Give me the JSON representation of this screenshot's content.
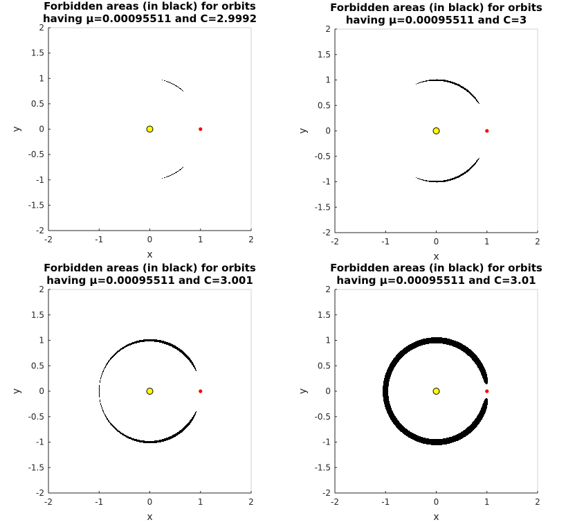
{
  "chart_data": [
    {
      "type": "scatter",
      "title": [
        "Forbidden areas (in black) for orbits",
        "having μ=0.00095511 and C=2.9992"
      ],
      "xlabel": "x",
      "ylabel": "y",
      "xlim": [
        -2,
        2
      ],
      "ylim": [
        -2,
        2
      ],
      "xticks": [
        -2,
        -1,
        0,
        1,
        2
      ],
      "yticks": [
        -2,
        -1.5,
        -1,
        -0.5,
        0,
        0.5,
        1,
        1.5,
        2
      ],
      "mu": 0.00095511,
      "C": 2.9992,
      "primary": {
        "x": 0,
        "y": 0,
        "color": "#ffff00"
      },
      "secondary": {
        "x": 1,
        "y": 0,
        "color": "#ff0000"
      },
      "forbidden_color": "#000000",
      "grid": false
    },
    {
      "type": "scatter",
      "title": [
        "Forbidden areas (in black) for orbits",
        "having μ=0.00095511 and C=3"
      ],
      "xlabel": "x",
      "ylabel": "y",
      "xlim": [
        -2,
        2
      ],
      "ylim": [
        -2,
        2
      ],
      "xticks": [
        -2,
        -1,
        0,
        1,
        2
      ],
      "yticks": [
        -2,
        -1.5,
        -1,
        -0.5,
        0,
        0.5,
        1,
        1.5,
        2
      ],
      "mu": 0.00095511,
      "C": 3,
      "primary": {
        "x": 0,
        "y": 0,
        "color": "#ffff00"
      },
      "secondary": {
        "x": 1,
        "y": 0,
        "color": "#ff0000"
      },
      "forbidden_color": "#000000",
      "grid": false
    },
    {
      "type": "scatter",
      "title": [
        "Forbidden areas (in black) for orbits",
        "having μ=0.00095511 and C=3.001"
      ],
      "xlabel": "x",
      "ylabel": "y",
      "xlim": [
        -2,
        2
      ],
      "ylim": [
        -2,
        2
      ],
      "xticks": [
        -2,
        -1,
        0,
        1,
        2
      ],
      "yticks": [
        -2,
        -1.5,
        -1,
        -0.5,
        0,
        0.5,
        1,
        1.5,
        2
      ],
      "mu": 0.00095511,
      "C": 3.001,
      "primary": {
        "x": 0,
        "y": 0,
        "color": "#ffff00"
      },
      "secondary": {
        "x": 1,
        "y": 0,
        "color": "#ff0000"
      },
      "forbidden_color": "#000000",
      "grid": false
    },
    {
      "type": "scatter",
      "title": [
        "Forbidden areas (in black) for orbits",
        "having μ=0.00095511 and C=3.01"
      ],
      "xlabel": "x",
      "ylabel": "y",
      "xlim": [
        -2,
        2
      ],
      "ylim": [
        -2,
        2
      ],
      "xticks": [
        -2,
        -1,
        0,
        1,
        2
      ],
      "yticks": [
        -2,
        -1.5,
        -1,
        -0.5,
        0,
        0.5,
        1,
        1.5,
        2
      ],
      "mu": 0.00095511,
      "C": 3.01,
      "primary": {
        "x": 0,
        "y": 0,
        "color": "#ffff00"
      },
      "secondary": {
        "x": 1,
        "y": 0,
        "color": "#ff0000"
      },
      "forbidden_color": "#000000",
      "grid": false
    }
  ]
}
